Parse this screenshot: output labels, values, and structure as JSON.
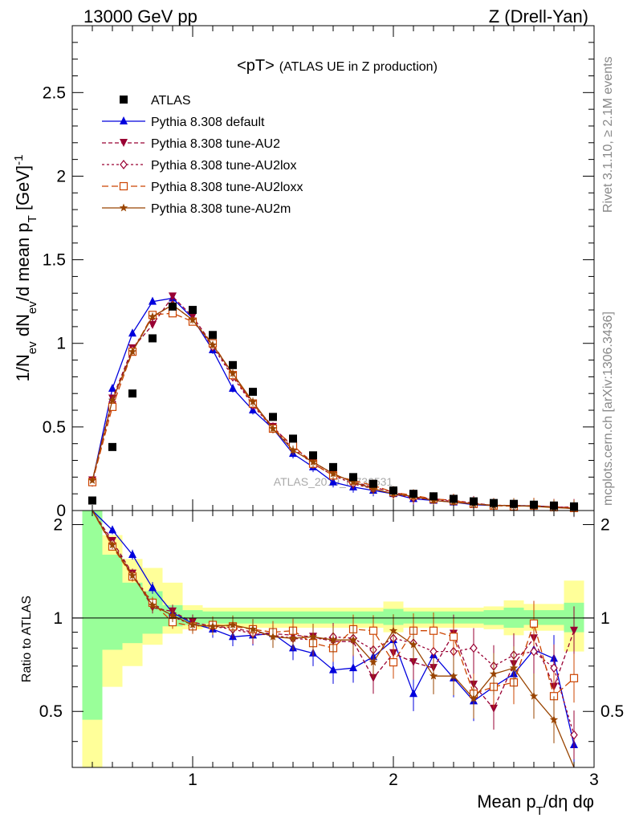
{
  "header": {
    "left": "13000 GeV pp",
    "right": "Z (Drell-Yan)"
  },
  "side_texts": {
    "rivet": "Rivet 3.1.10, ≥ 2.1M events",
    "mcplots": "mcplots.cern.ch [arXiv:1306.3436]"
  },
  "watermark": "ATLAS_2019_I1736531",
  "chart_data": {
    "type": "scatter",
    "title_main": "<pT>",
    "title_sub": "(ATLAS UE in Z production)",
    "xlabel": "Mean pT/dη dφ",
    "ylabel": "1/Nev dNev/d mean pT [GeV]^-1",
    "ratio_ylabel": "Ratio to ATLAS",
    "xlim": [
      0.4,
      3.0
    ],
    "ylim": [
      0,
      2.9
    ],
    "ratio_ylim": [
      0.33,
      2.22
    ],
    "x_ticks": [
      1,
      2,
      3
    ],
    "y_ticks": [
      0,
      0.5,
      1,
      1.5,
      2,
      2.5
    ],
    "ratio_ticks": [
      0.5,
      1,
      2
    ],
    "x": [
      0.5,
      0.6,
      0.7,
      0.8,
      0.9,
      1.0,
      1.1,
      1.2,
      1.3,
      1.4,
      1.5,
      1.6,
      1.7,
      1.8,
      1.9,
      2.0,
      2.1,
      2.2,
      2.3,
      2.4,
      2.5,
      2.6,
      2.7,
      2.8,
      2.9
    ],
    "x_edges": [
      0.45,
      0.55,
      0.65,
      0.75,
      0.85,
      0.95,
      1.05,
      1.15,
      1.25,
      1.35,
      1.45,
      1.55,
      1.65,
      1.75,
      1.85,
      1.95,
      2.05,
      2.15,
      2.25,
      2.35,
      2.45,
      2.55,
      2.65,
      2.75,
      2.85,
      2.95
    ],
    "data": {
      "name": "ATLAS",
      "values": [
        0.06,
        0.38,
        0.7,
        1.03,
        1.22,
        1.2,
        1.05,
        0.87,
        0.71,
        0.56,
        0.43,
        0.33,
        0.26,
        0.2,
        0.16,
        0.12,
        0.1,
        0.085,
        0.07,
        0.055,
        0.045,
        0.04,
        0.035,
        0.03,
        0.025
      ]
    },
    "bands": {
      "inner": [
        [
          0.47,
          2.4
        ],
        [
          0.79,
          1.6
        ],
        [
          0.83,
          1.3
        ],
        [
          0.89,
          1.22
        ],
        [
          0.94,
          1.1
        ],
        [
          0.95,
          1.06
        ],
        [
          0.96,
          1.05
        ],
        [
          0.96,
          1.05
        ],
        [
          0.96,
          1.05
        ],
        [
          0.96,
          1.05
        ],
        [
          0.96,
          1.05
        ],
        [
          0.96,
          1.05
        ],
        [
          0.96,
          1.05
        ],
        [
          0.96,
          1.05
        ],
        [
          0.96,
          1.05
        ],
        [
          0.95,
          1.07
        ],
        [
          0.96,
          1.05
        ],
        [
          0.96,
          1.05
        ],
        [
          0.96,
          1.05
        ],
        [
          0.96,
          1.05
        ],
        [
          0.95,
          1.06
        ],
        [
          0.93,
          1.08
        ],
        [
          0.95,
          1.06
        ],
        [
          0.95,
          1.06
        ],
        [
          0.9,
          1.12
        ]
      ],
      "outer": [
        [
          0.33,
          2.05
        ],
        [
          0.6,
          1.85
        ],
        [
          0.7,
          1.55
        ],
        [
          0.82,
          1.45
        ],
        [
          0.89,
          1.3
        ],
        [
          0.92,
          1.1
        ],
        [
          0.93,
          1.08
        ],
        [
          0.93,
          1.08
        ],
        [
          0.93,
          1.08
        ],
        [
          0.93,
          1.08
        ],
        [
          0.93,
          1.08
        ],
        [
          0.93,
          1.08
        ],
        [
          0.93,
          1.08
        ],
        [
          0.93,
          1.08
        ],
        [
          0.93,
          1.08
        ],
        [
          0.9,
          1.13
        ],
        [
          0.93,
          1.08
        ],
        [
          0.93,
          1.08
        ],
        [
          0.93,
          1.08
        ],
        [
          0.93,
          1.08
        ],
        [
          0.92,
          1.09
        ],
        [
          0.88,
          1.14
        ],
        [
          0.91,
          1.11
        ],
        [
          0.91,
          1.11
        ],
        [
          0.78,
          1.32
        ]
      ]
    },
    "series": [
      {
        "name": "Pythia 8.308 default",
        "color": "#0000dd",
        "dash": "",
        "marker": "triangle",
        "values": [
          0.17,
          0.73,
          1.06,
          1.25,
          1.27,
          1.15,
          0.96,
          0.73,
          0.6,
          0.49,
          0.34,
          0.26,
          0.17,
          0.14,
          0.12,
          0.1,
          0.07,
          0.06,
          0.05,
          0.035,
          0.03,
          0.03,
          0.028,
          0.022,
          0.01
        ],
        "ratio": [
          2.9,
          1.92,
          1.6,
          1.25,
          1.04,
          0.96,
          0.92,
          0.87,
          0.88,
          0.89,
          0.8,
          0.77,
          0.68,
          0.69,
          0.75,
          0.85,
          0.57,
          0.76,
          0.64,
          0.54,
          0.6,
          0.66,
          0.79,
          0.74,
          0.39
        ]
      },
      {
        "name": "Pythia 8.308 tune-AU2",
        "color": "#990033",
        "dash": "5,3",
        "marker": "invtriangle",
        "values": [
          0.18,
          0.67,
          0.97,
          1.11,
          1.28,
          1.16,
          0.99,
          0.81,
          0.64,
          0.5,
          0.38,
          0.29,
          0.22,
          0.17,
          0.14,
          0.11,
          0.08,
          0.07,
          0.06,
          0.045,
          0.03,
          0.03,
          0.025,
          0.02,
          0.02
        ],
        "ratio": [
          3.0,
          1.77,
          1.39,
          1.08,
          1.05,
          0.97,
          0.94,
          0.93,
          0.9,
          0.89,
          0.88,
          0.87,
          0.84,
          0.84,
          0.64,
          0.77,
          0.72,
          0.69,
          0.89,
          0.61,
          0.51,
          0.71,
          0.86,
          0.6,
          0.91
        ]
      },
      {
        "name": "Pythia 8.308 tune-AU2lox",
        "color": "#990033",
        "dash": "3,3",
        "marker": "diamond",
        "values": [
          0.17,
          0.65,
          0.96,
          1.16,
          1.23,
          1.14,
          0.98,
          0.8,
          0.63,
          0.49,
          0.37,
          0.28,
          0.21,
          0.16,
          0.13,
          0.1,
          0.075,
          0.065,
          0.055,
          0.04,
          0.032,
          0.03,
          0.028,
          0.022,
          0.018
        ],
        "ratio": [
          2.9,
          1.74,
          1.38,
          1.12,
          1.01,
          0.95,
          0.94,
          0.92,
          0.89,
          0.88,
          0.86,
          0.85,
          0.87,
          0.86,
          0.79,
          0.86,
          0.83,
          0.78,
          0.78,
          0.8,
          0.7,
          0.76,
          0.78,
          0.69,
          0.42
        ]
      },
      {
        "name": "Pythia 8.308 tune-AU2loxx",
        "color": "#cc4400",
        "dash": "8,4",
        "marker": "square",
        "values": [
          0.17,
          0.62,
          0.95,
          1.17,
          1.18,
          1.13,
          1.0,
          0.81,
          0.64,
          0.49,
          0.39,
          0.28,
          0.21,
          0.18,
          0.15,
          0.11,
          0.09,
          0.07,
          0.06,
          0.04,
          0.03,
          0.025,
          0.03,
          0.02,
          0.015
        ],
        "ratio": [
          2.85,
          1.7,
          1.36,
          1.12,
          0.97,
          0.94,
          0.95,
          0.94,
          0.92,
          0.9,
          0.91,
          0.83,
          0.8,
          0.92,
          0.91,
          0.72,
          0.91,
          0.91,
          0.87,
          0.57,
          0.6,
          0.62,
          0.96,
          0.56,
          0.64
        ]
      },
      {
        "name": "Pythia 8.308 tune-AU2m",
        "color": "#994400",
        "dash": "",
        "marker": "star",
        "values": [
          0.18,
          0.66,
          0.95,
          1.16,
          1.23,
          1.14,
          0.99,
          0.82,
          0.65,
          0.49,
          0.36,
          0.29,
          0.22,
          0.17,
          0.13,
          0.1,
          0.085,
          0.06,
          0.05,
          0.04,
          0.03,
          0.03,
          0.025,
          0.018,
          0.012
        ],
        "ratio": [
          2.95,
          1.72,
          1.37,
          1.1,
          1.02,
          0.95,
          0.94,
          0.95,
          0.92,
          0.87,
          0.86,
          0.87,
          0.85,
          0.85,
          0.72,
          0.91,
          0.82,
          0.65,
          0.65,
          0.55,
          0.66,
          0.69,
          0.56,
          0.47,
          0.2
        ]
      }
    ]
  }
}
